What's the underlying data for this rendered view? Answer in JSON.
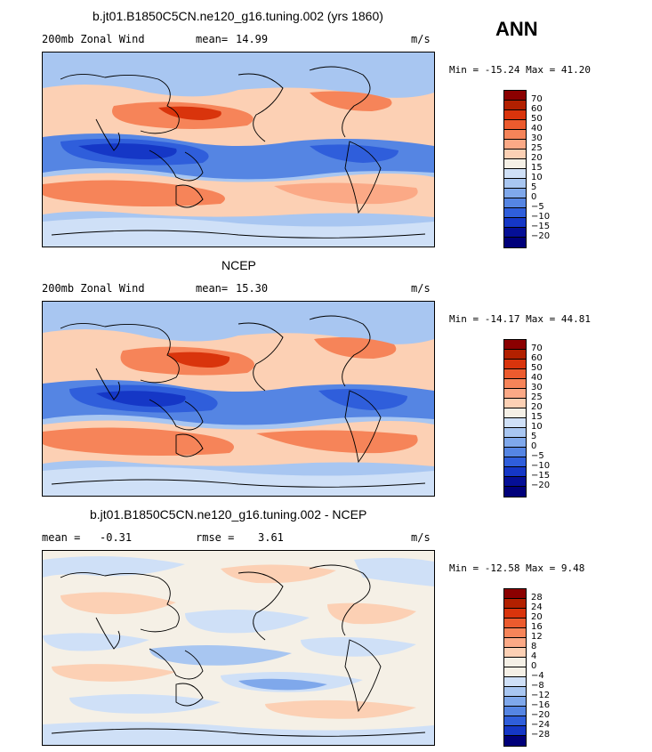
{
  "season": "ANN",
  "panels": [
    {
      "title": "b.jt01.B1850C5CN.ne120_g16.tuning.002 (yrs 1860)",
      "left_label": "200mb Zonal Wind",
      "stat_label": "mean=",
      "stat_value": "14.99",
      "stat2_label": "",
      "stat2_value": "",
      "units": "m/s",
      "min_max": "Min = -15.24 Max = 41.20",
      "kind": "model"
    },
    {
      "title": "NCEP",
      "left_label": "200mb Zonal Wind",
      "stat_label": "mean=",
      "stat_value": "15.30",
      "stat2_label": "",
      "stat2_value": "",
      "units": "m/s",
      "min_max": "Min = -14.17 Max = 44.81",
      "kind": "obs"
    },
    {
      "title": "b.jt01.B1850C5CN.ne120_g16.tuning.002 - NCEP",
      "left_label": "mean =",
      "stat_label": "",
      "stat_value": "-0.31",
      "stat2_label": "rmse =",
      "stat2_value": "3.61",
      "units": "m/s",
      "min_max": "Min = -12.58 Max =   9.48",
      "kind": "diff"
    }
  ],
  "colorbars": {
    "wind": {
      "labels": [
        "70",
        "60",
        "50",
        "40",
        "30",
        "25",
        "20",
        "15",
        "10",
        "5",
        "0",
        "-5",
        "-10",
        "-15",
        "-20"
      ],
      "colors": [
        "#8b0000",
        "#b22000",
        "#d9340c",
        "#ec5b2e",
        "#f68459",
        "#fba986",
        "#fcd0b4",
        "#f5f0e6",
        "#cfe0f7",
        "#a8c6f1",
        "#7fa8eb",
        "#5585e3",
        "#2f5edb",
        "#1537c6",
        "#050f96",
        "#00007a"
      ]
    },
    "diff": {
      "labels": [
        "28",
        "24",
        "20",
        "16",
        "12",
        "8",
        "4",
        "0",
        "-4",
        "-8",
        "-12",
        "-16",
        "-20",
        "-24",
        "-28"
      ],
      "colors": [
        "#8b0000",
        "#b22000",
        "#d9340c",
        "#ec5b2e",
        "#f68459",
        "#fba986",
        "#fcd0b4",
        "#f5f0e6",
        "#f5f0e6",
        "#cfe0f7",
        "#a8c6f1",
        "#7fa8eb",
        "#5585e3",
        "#2f5edb",
        "#1537c6",
        "#00007a"
      ]
    }
  }
}
